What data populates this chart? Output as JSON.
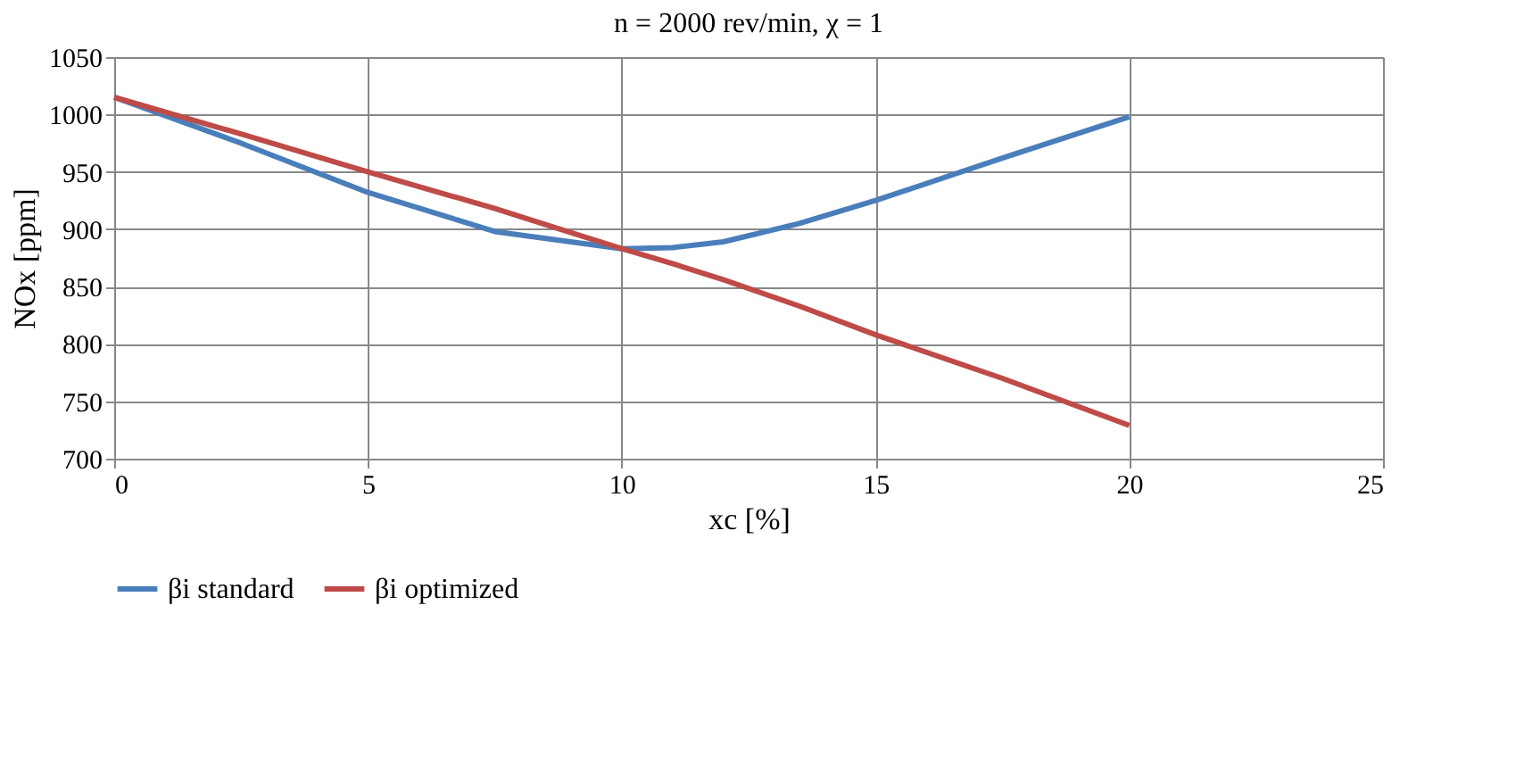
{
  "chart_data": {
    "type": "line",
    "title": "n = 2000 rev/min, χ = 1",
    "xlabel": "xc [%]",
    "ylabel": "NOx [ppm]",
    "x": [
      0,
      2.5,
      5,
      7.5,
      10,
      11,
      12,
      13.5,
      15,
      17.5,
      20
    ],
    "series": [
      {
        "name": "βi standard",
        "color": "#4a7ebb",
        "values": [
          1015,
          975,
          932,
          898,
          883,
          884,
          889,
          905,
          925,
          962,
          998
        ]
      },
      {
        "name": "βi optimized",
        "color": "#be4b48",
        "values": [
          1015,
          983,
          950,
          918,
          883,
          870,
          856,
          833,
          808,
          770,
          729
        ]
      }
    ],
    "xlim": [
      0,
      25
    ],
    "xticks": [
      0,
      5,
      10,
      15,
      20,
      25
    ],
    "ylim": [
      700,
      1050
    ],
    "yticks": [
      700,
      750,
      800,
      850,
      900,
      950,
      1000,
      1050
    ],
    "grid": true,
    "legend": "bottom",
    "marker": "none",
    "line_style": "solid"
  }
}
